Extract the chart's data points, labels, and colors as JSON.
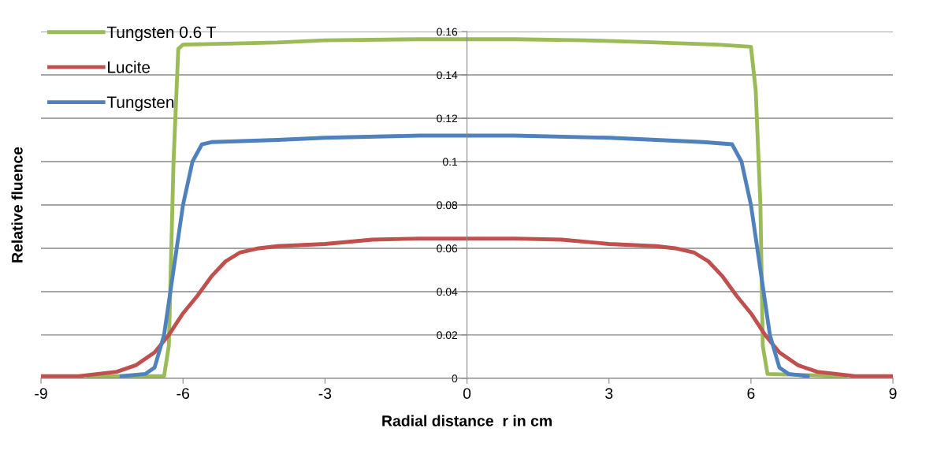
{
  "chart_data": {
    "type": "line",
    "xlabel": "Radial distance  r in cm",
    "ylabel": "Relative fluence",
    "xlim": [
      -9,
      9
    ],
    "xticks": [
      -9,
      -6,
      -3,
      0,
      3,
      6,
      9
    ],
    "ylim": [
      0,
      0.16
    ],
    "yticks": [
      0,
      0.02,
      0.04,
      0.06,
      0.08,
      0.1,
      0.12,
      0.14,
      0.16
    ],
    "grid": "y",
    "legend": "top left",
    "marker": "none",
    "line_style": "solid",
    "series": [
      {
        "name": "Tungsten 0.6 T",
        "color": "#9bbb59",
        "x": [
          -8.0,
          -6.4,
          -6.3,
          -6.2,
          -6.1,
          -6.0,
          -4.0,
          -3.0,
          -1.0,
          1.0,
          2.5,
          4.0,
          5.3,
          6.0,
          6.1,
          6.2,
          6.25,
          6.35,
          8.0
        ],
        "values": [
          0.001,
          0.001,
          0.015,
          0.1,
          0.152,
          0.154,
          0.155,
          0.156,
          0.1565,
          0.1565,
          0.156,
          0.155,
          0.154,
          0.153,
          0.133,
          0.08,
          0.015,
          0.002,
          0.001
        ]
      },
      {
        "name": "Lucite",
        "color": "#c0504d",
        "x": [
          -9,
          -8.2,
          -7.8,
          -7.4,
          -7.0,
          -6.6,
          -6.3,
          -6.0,
          -5.7,
          -5.4,
          -5.1,
          -4.8,
          -4.4,
          -4.0,
          -3.0,
          -2.0,
          -1.0,
          0,
          1.0,
          2.0,
          3.0,
          4.0,
          4.4,
          4.8,
          5.1,
          5.4,
          5.7,
          6.0,
          6.3,
          6.6,
          7.0,
          7.4,
          7.8,
          8.2,
          9
        ],
        "values": [
          0.001,
          0.001,
          0.002,
          0.003,
          0.006,
          0.012,
          0.02,
          0.03,
          0.038,
          0.047,
          0.054,
          0.058,
          0.06,
          0.061,
          0.062,
          0.064,
          0.0645,
          0.0645,
          0.0645,
          0.064,
          0.062,
          0.061,
          0.06,
          0.058,
          0.054,
          0.047,
          0.038,
          0.03,
          0.02,
          0.012,
          0.006,
          0.003,
          0.002,
          0.001,
          0.001
        ]
      },
      {
        "name": "Tungsten",
        "color": "#4f81bd",
        "x": [
          -7.3,
          -6.8,
          -6.6,
          -6.4,
          -6.2,
          -6.0,
          -5.8,
          -5.6,
          -5.4,
          -4.0,
          -3.0,
          -1.0,
          1.0,
          3.0,
          4.0,
          5.0,
          5.6,
          5.8,
          6.0,
          6.2,
          6.4,
          6.6,
          6.8,
          7.2
        ],
        "values": [
          0.001,
          0.002,
          0.005,
          0.02,
          0.05,
          0.08,
          0.1,
          0.108,
          0.109,
          0.11,
          0.111,
          0.112,
          0.112,
          0.111,
          0.11,
          0.109,
          0.108,
          0.1,
          0.08,
          0.05,
          0.02,
          0.005,
          0.002,
          0.001
        ]
      }
    ]
  }
}
